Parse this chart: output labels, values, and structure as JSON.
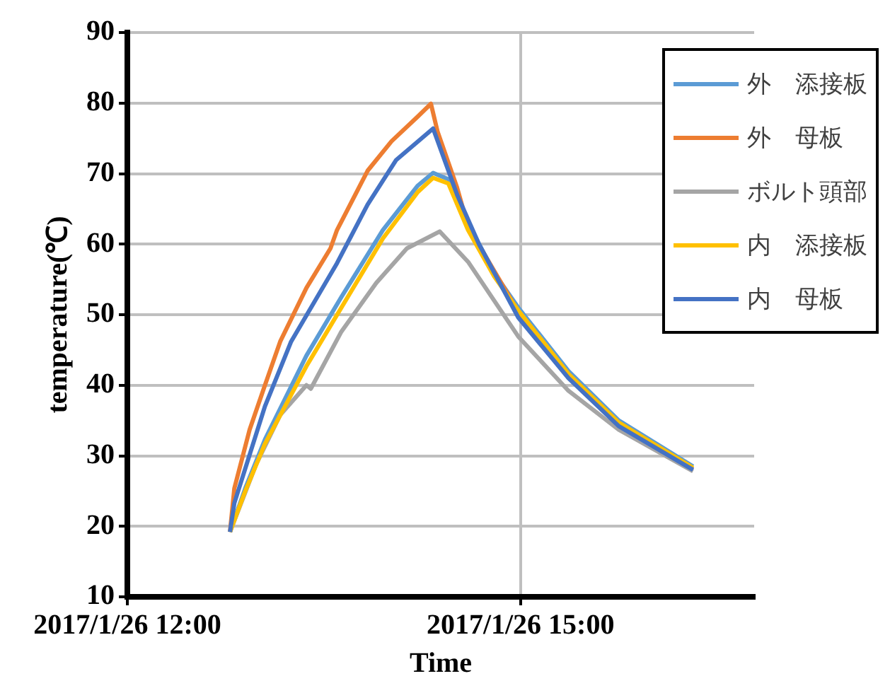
{
  "chart_data": {
    "type": "line",
    "xlabel": "Time",
    "ylabel": "temperature(℃)",
    "xlim": [
      "2017-01-26T12:00",
      "2017-01-26T16:47"
    ],
    "xticks": [
      {
        "value": "2017-01-26T12:00",
        "label": "2017/1/26 12:00"
      },
      {
        "value": "2017-01-26T15:00",
        "label": "2017/1/26 15:00"
      }
    ],
    "ylim": [
      10,
      90
    ],
    "yticks": [
      10,
      20,
      30,
      40,
      50,
      60,
      70,
      80,
      90
    ],
    "grid": true,
    "legend": "top right",
    "marker": "none",
    "line_style": "solid",
    "series": [
      {
        "name": "外　添接板",
        "color": "#5b9bd5",
        "x": [
          "2017-01-26T12:47",
          "2017-01-26T12:54",
          "2017-01-26T13:03",
          "2017-01-26T13:22",
          "2017-01-26T13:38",
          "2017-01-26T13:57",
          "2017-01-26T14:13",
          "2017-01-26T14:20",
          "2017-01-26T14:27",
          "2017-01-26T14:36",
          "2017-01-26T14:48",
          "2017-01-26T14:59",
          "2017-01-26T15:22",
          "2017-01-26T15:45",
          "2017-01-26T16:19"
        ],
        "values": [
          19.2,
          25.4,
          32.3,
          44.2,
          52.5,
          62,
          68.3,
          70.1,
          69.2,
          63,
          55.9,
          51,
          42,
          35,
          28.5
        ]
      },
      {
        "name": "外　母板",
        "color": "#ed7d31",
        "x": [
          "2017-01-26T12:47",
          "2017-01-26T12:49",
          "2017-01-26T12:56",
          "2017-01-26T13:03",
          "2017-01-26T13:10",
          "2017-01-26T13:22",
          "2017-01-26T13:33",
          "2017-01-26T13:36",
          "2017-01-26T13:50",
          "2017-01-26T14:01",
          "2017-01-26T14:13",
          "2017-01-26T14:19",
          "2017-01-26T14:22",
          "2017-01-26T14:31",
          "2017-01-26T14:36",
          "2017-01-26T14:59",
          "2017-01-26T15:22",
          "2017-01-26T15:45",
          "2017-01-26T16:19"
        ],
        "values": [
          19.2,
          25.4,
          33.7,
          40,
          46.2,
          53.8,
          59.4,
          62,
          70.4,
          74.6,
          78.1,
          79.9,
          76,
          68,
          62.5,
          50.4,
          41.3,
          34.4,
          28.1
        ]
      },
      {
        "name": "ボルト頭部",
        "color": "#a5a5a5",
        "x": [
          "2017-01-26T12:47",
          "2017-01-26T12:59",
          "2017-01-26T13:10",
          "2017-01-26T13:22",
          "2017-01-26T13:24",
          "2017-01-26T13:38",
          "2017-01-26T13:54",
          "2017-01-26T14:08",
          "2017-01-26T14:23",
          "2017-01-26T14:36",
          "2017-01-26T14:59",
          "2017-01-26T15:22",
          "2017-01-26T15:45",
          "2017-01-26T16:19"
        ],
        "values": [
          19.2,
          28.8,
          35.8,
          40,
          39.5,
          47.6,
          54.5,
          59.4,
          61.8,
          57.5,
          46.9,
          39.2,
          33.7,
          27.8
        ]
      },
      {
        "name": "内　添接板",
        "color": "#ffc000",
        "x": [
          "2017-01-26T12:47",
          "2017-01-26T12:54",
          "2017-01-26T13:03",
          "2017-01-26T13:22",
          "2017-01-26T13:38",
          "2017-01-26T13:57",
          "2017-01-26T14:13",
          "2017-01-26T14:20",
          "2017-01-26T14:27",
          "2017-01-26T14:36",
          "2017-01-26T14:48",
          "2017-01-26T14:59",
          "2017-01-26T15:22",
          "2017-01-26T15:45",
          "2017-01-26T16:19"
        ],
        "values": [
          19.2,
          25,
          31.7,
          42.7,
          51,
          60.8,
          67.4,
          69.4,
          68.6,
          62,
          55.4,
          50.6,
          41.6,
          34.7,
          28.3
        ]
      },
      {
        "name": "内　母板",
        "color": "#4472c4",
        "x": [
          "2017-01-26T12:47",
          "2017-01-26T12:49",
          "2017-01-26T13:03",
          "2017-01-26T13:15",
          "2017-01-26T13:36",
          "2017-01-26T13:50",
          "2017-01-26T14:03",
          "2017-01-26T14:20",
          "2017-01-26T14:31",
          "2017-01-26T14:41",
          "2017-01-26T14:59",
          "2017-01-26T15:22",
          "2017-01-26T15:45",
          "2017-01-26T16:19"
        ],
        "values": [
          19.2,
          23.3,
          37,
          46.2,
          57.3,
          65.6,
          71.9,
          76.4,
          67,
          60,
          49.6,
          41,
          34.2,
          28
        ]
      }
    ]
  }
}
